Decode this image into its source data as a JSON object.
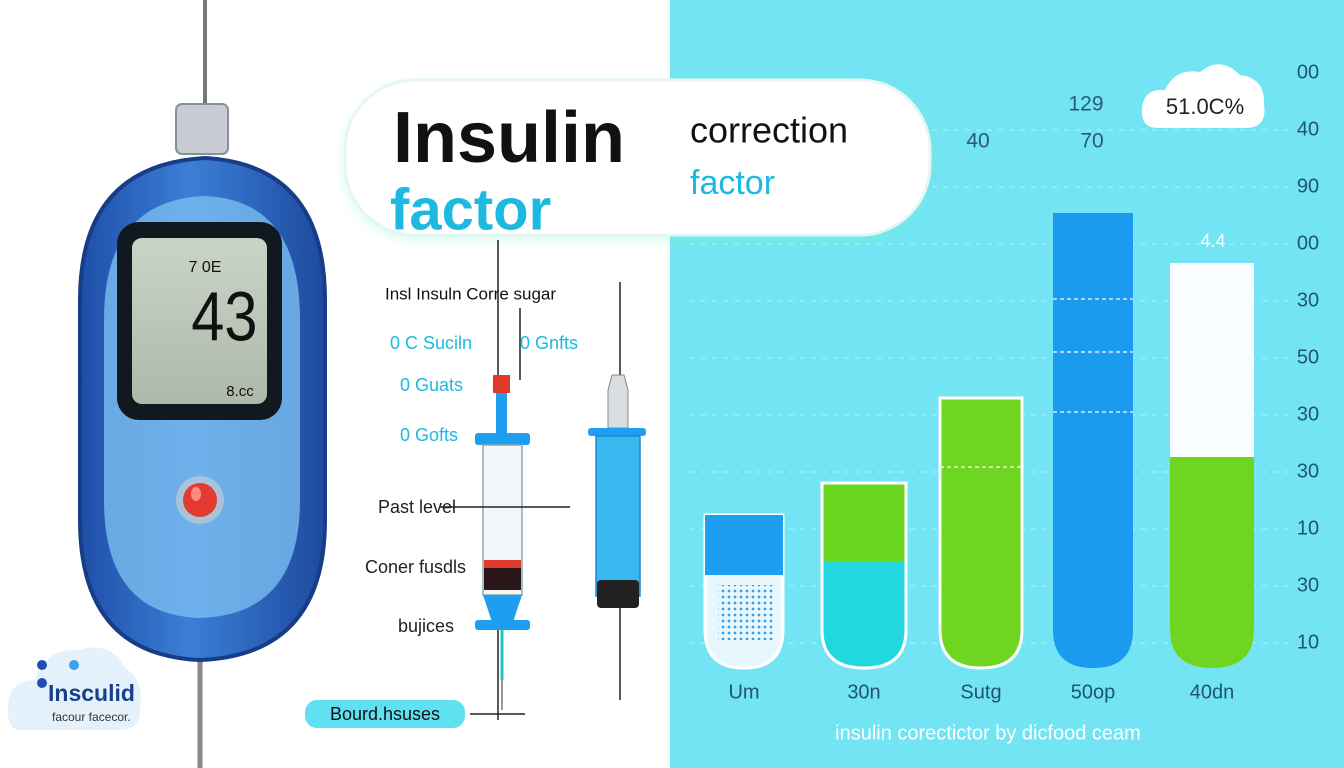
{
  "header": {
    "title": "Insulin",
    "subtitle": "correction",
    "subtitle_word": "factor",
    "title_word": "factor"
  },
  "meter": {
    "status": "7 0E",
    "reading": "43",
    "unit": "8.cc"
  },
  "logo": {
    "name": "Insculid",
    "tagline": "facour facecor."
  },
  "labels": {
    "heading": "Insl Insuln Corre sugar",
    "items": [
      "0 C Suciln",
      "0 Gnfts",
      "0 Guats",
      "0 Gofts",
      "Past level",
      "Coner fusdls",
      "bujices"
    ],
    "badge": "Bourd.hsuses"
  },
  "panel": {
    "top_labels": [
      "129",
      "40",
      "70",
      "4.4"
    ],
    "cloud": "51.0C%",
    "axis_labels": [
      "00",
      "40",
      "90",
      "00",
      "30",
      "50",
      "30",
      "30",
      "10",
      "30",
      "10"
    ],
    "categories": [
      "Um",
      "30n",
      "Sutg",
      "50op",
      "40dn"
    ],
    "caption": "insulin corectictor by dicfood ceam"
  }
}
